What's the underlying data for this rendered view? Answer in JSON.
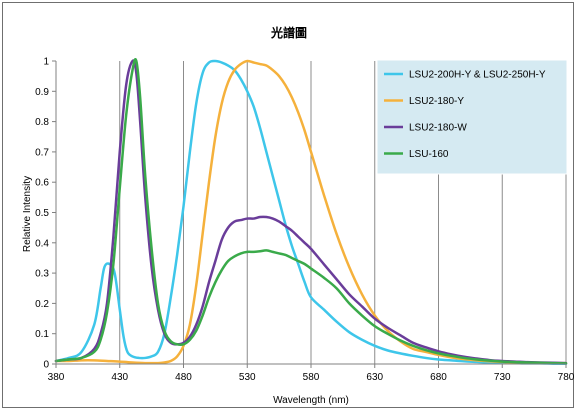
{
  "chart_data": {
    "type": "line",
    "title": "光譜圖",
    "xlabel": "Wavelength (nm)",
    "ylabel": "Relative Intensity",
    "xlim": [
      380,
      780
    ],
    "ylim": [
      0,
      1
    ],
    "xticks": [
      380,
      430,
      480,
      530,
      580,
      630,
      680,
      730,
      780
    ],
    "yticks": [
      0,
      0.1,
      0.2,
      0.3,
      0.4,
      0.5,
      0.6,
      0.7,
      0.8,
      0.9,
      1
    ],
    "ytick_labels": [
      "0",
      "0.1",
      "0.2",
      "0.3",
      "0.4",
      "0.5",
      "0.6",
      "0.7",
      "0.8",
      "0.9",
      "1"
    ],
    "grid": {
      "vertical": true,
      "horizontal": false
    },
    "legend_position": "top-right",
    "series": [
      {
        "name": "LSU2-200H-Y & LSU2-250H-Y",
        "color": "#3ec6ea",
        "x": [
          380,
          390,
          400,
          410,
          415,
          418,
          422,
          426,
          430,
          433,
          436,
          440,
          445,
          450,
          455,
          460,
          465,
          470,
          475,
          480,
          485,
          490,
          495,
          500,
          505,
          510,
          515,
          520,
          525,
          530,
          535,
          540,
          545,
          550,
          555,
          560,
          565,
          570,
          575,
          580,
          590,
          600,
          610,
          620,
          630,
          640,
          650,
          660,
          670,
          680,
          690,
          700,
          710,
          720,
          730,
          740,
          750,
          760,
          770,
          780
        ],
        "y": [
          0.01,
          0.02,
          0.04,
          0.13,
          0.25,
          0.32,
          0.33,
          0.3,
          0.18,
          0.09,
          0.04,
          0.025,
          0.02,
          0.02,
          0.025,
          0.04,
          0.1,
          0.22,
          0.36,
          0.52,
          0.7,
          0.86,
          0.96,
          0.995,
          1.0,
          0.995,
          0.985,
          0.97,
          0.94,
          0.9,
          0.85,
          0.78,
          0.7,
          0.62,
          0.54,
          0.46,
          0.39,
          0.33,
          0.27,
          0.22,
          0.18,
          0.14,
          0.105,
          0.08,
          0.06,
          0.045,
          0.035,
          0.027,
          0.02,
          0.015,
          0.012,
          0.009,
          0.007,
          0.005,
          0.004,
          0.003,
          0.002,
          0.002,
          0.001,
          0.001
        ]
      },
      {
        "name": "LSU2-180-Y",
        "color": "#f5b13c",
        "x": [
          380,
          390,
          400,
          410,
          420,
          430,
          440,
          450,
          460,
          465,
          470,
          475,
          480,
          485,
          490,
          495,
          500,
          505,
          510,
          515,
          520,
          525,
          530,
          535,
          540,
          545,
          550,
          555,
          560,
          565,
          570,
          575,
          580,
          585,
          590,
          600,
          610,
          620,
          630,
          640,
          650,
          660,
          670,
          680,
          690,
          700,
          710,
          720,
          730,
          740,
          750,
          760,
          770,
          780
        ],
        "y": [
          0.01,
          0.01,
          0.012,
          0.012,
          0.01,
          0.008,
          0.005,
          0.003,
          0.003,
          0.005,
          0.01,
          0.025,
          0.06,
          0.13,
          0.26,
          0.43,
          0.6,
          0.75,
          0.86,
          0.93,
          0.97,
          0.99,
          1.0,
          0.995,
          0.99,
          0.985,
          0.97,
          0.95,
          0.92,
          0.88,
          0.83,
          0.77,
          0.7,
          0.63,
          0.56,
          0.43,
          0.32,
          0.23,
          0.16,
          0.11,
          0.075,
          0.05,
          0.04,
          0.03,
          0.022,
          0.016,
          0.012,
          0.009,
          0.007,
          0.005,
          0.004,
          0.003,
          0.003,
          0.003
        ]
      },
      {
        "name": "LSU2-180-W",
        "color": "#6a3d9a",
        "x": [
          380,
          390,
          400,
          410,
          415,
          420,
          425,
          430,
          435,
          440,
          443,
          446,
          450,
          455,
          460,
          465,
          470,
          475,
          480,
          485,
          490,
          495,
          500,
          505,
          510,
          515,
          520,
          525,
          530,
          535,
          540,
          545,
          550,
          555,
          560,
          565,
          570,
          575,
          580,
          590,
          600,
          610,
          620,
          630,
          640,
          650,
          660,
          670,
          680,
          690,
          700,
          710,
          720,
          730,
          740,
          750,
          760,
          770,
          780
        ],
        "y": [
          0.01,
          0.015,
          0.02,
          0.05,
          0.1,
          0.2,
          0.42,
          0.7,
          0.92,
          1.0,
          0.96,
          0.8,
          0.55,
          0.32,
          0.18,
          0.1,
          0.07,
          0.065,
          0.07,
          0.09,
          0.13,
          0.19,
          0.27,
          0.34,
          0.41,
          0.45,
          0.47,
          0.475,
          0.48,
          0.48,
          0.485,
          0.485,
          0.48,
          0.47,
          0.455,
          0.44,
          0.42,
          0.4,
          0.38,
          0.33,
          0.28,
          0.23,
          0.19,
          0.15,
          0.12,
          0.095,
          0.07,
          0.055,
          0.042,
          0.032,
          0.024,
          0.018,
          0.013,
          0.01,
          0.008,
          0.006,
          0.005,
          0.004,
          0.003
        ]
      },
      {
        "name": "LSU-160",
        "color": "#3aaa4a",
        "x": [
          380,
          390,
          400,
          410,
          415,
          420,
          425,
          430,
          435,
          440,
          443,
          446,
          450,
          455,
          460,
          465,
          470,
          475,
          480,
          485,
          490,
          495,
          500,
          505,
          510,
          515,
          520,
          525,
          530,
          535,
          540,
          545,
          550,
          555,
          560,
          565,
          570,
          575,
          580,
          590,
          600,
          610,
          620,
          630,
          640,
          650,
          660,
          670,
          680,
          690,
          700,
          710,
          720,
          730,
          740,
          750,
          760,
          770,
          780
        ],
        "y": [
          0.01,
          0.015,
          0.02,
          0.04,
          0.08,
          0.17,
          0.33,
          0.58,
          0.82,
          0.97,
          1.0,
          0.88,
          0.62,
          0.38,
          0.2,
          0.11,
          0.075,
          0.065,
          0.065,
          0.08,
          0.11,
          0.16,
          0.22,
          0.27,
          0.31,
          0.34,
          0.355,
          0.365,
          0.37,
          0.37,
          0.372,
          0.375,
          0.37,
          0.365,
          0.36,
          0.35,
          0.34,
          0.33,
          0.315,
          0.285,
          0.25,
          0.2,
          0.16,
          0.125,
          0.1,
          0.078,
          0.06,
          0.046,
          0.035,
          0.027,
          0.02,
          0.015,
          0.011,
          0.008,
          0.006,
          0.005,
          0.004,
          0.003,
          0.002
        ]
      }
    ]
  }
}
